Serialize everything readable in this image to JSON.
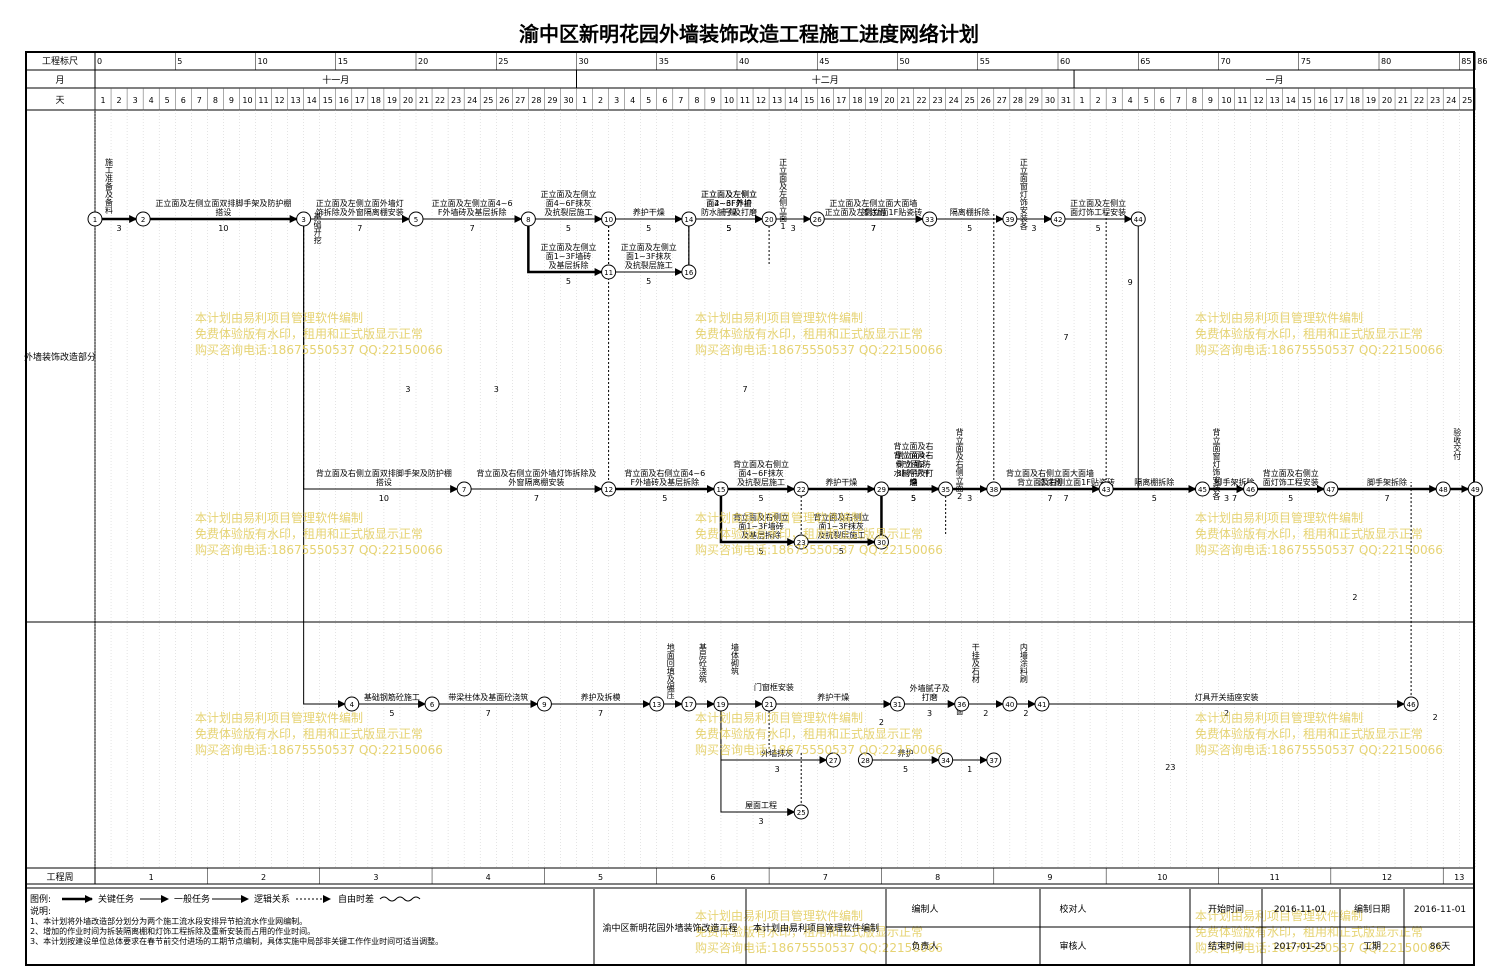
{
  "title": "渝中区新明花园外墙装饰改造工程施工进度网络计划",
  "header": {
    "scale_label": "工程标尺",
    "month_label": "月",
    "day_label": "天",
    "week_label": "工程周",
    "section_label": "外墙装饰改造部分",
    "scale_ticks": [
      "0",
      "5",
      "10",
      "15",
      "20",
      "25",
      "30",
      "35",
      "40",
      "45",
      "50",
      "55",
      "60",
      "65",
      "70",
      "75",
      "80",
      "85",
      "86"
    ],
    "months": [
      {
        "name": "十一月",
        "start": 0,
        "end": 30
      },
      {
        "name": "十二月",
        "start": 30,
        "end": 61
      },
      {
        "name": "一月",
        "start": 61,
        "end": 86
      }
    ],
    "weeks": [
      "1",
      "2",
      "3",
      "4",
      "5",
      "6",
      "7",
      "8",
      "9",
      "10",
      "11",
      "12",
      "13"
    ]
  },
  "nodes": [
    {
      "id": "1",
      "day": 0,
      "row": "A"
    },
    {
      "id": "2",
      "day": 3,
      "row": "A"
    },
    {
      "id": "3",
      "day": 13,
      "row": "A"
    },
    {
      "id": "5",
      "day": 20,
      "row": "A"
    },
    {
      "id": "8",
      "day": 27,
      "row": "A"
    },
    {
      "id": "10",
      "day": 32,
      "row": "A"
    },
    {
      "id": "14",
      "day": 37,
      "row": "A"
    },
    {
      "id": "20",
      "day": 42,
      "row": "A"
    },
    {
      "id": "26",
      "day": 45,
      "row": "A"
    },
    {
      "id": "33",
      "day": 52,
      "row": "A"
    },
    {
      "id": "39",
      "day": 57,
      "row": "A"
    },
    {
      "id": "42",
      "day": 60,
      "row": "A"
    },
    {
      "id": "44",
      "day": 65,
      "row": "A"
    },
    {
      "id": "11",
      "day": 32,
      "row": "B"
    },
    {
      "id": "16",
      "day": 37,
      "row": "B"
    },
    {
      "id": "7",
      "day": 23,
      "row": "C"
    },
    {
      "id": "12",
      "day": 32,
      "row": "C"
    },
    {
      "id": "15",
      "day": 39,
      "row": "C"
    },
    {
      "id": "22",
      "day": 44,
      "row": "C"
    },
    {
      "id": "29",
      "day": 49,
      "row": "C"
    },
    {
      "id": "35",
      "day": 53,
      "row": "C"
    },
    {
      "id": "38",
      "day": 56,
      "row": "C"
    },
    {
      "id": "43",
      "day": 63,
      "row": "C"
    },
    {
      "id": "45",
      "day": 69,
      "row": "C"
    },
    {
      "id": "46",
      "day": 72,
      "row": "C"
    },
    {
      "id": "47",
      "day": 77,
      "row": "C"
    },
    {
      "id": "48",
      "day": 84,
      "row": "C"
    },
    {
      "id": "49",
      "day": 86,
      "row": "C"
    },
    {
      "id": "23",
      "day": 44,
      "row": "D"
    },
    {
      "id": "30",
      "day": 49,
      "row": "D"
    },
    {
      "id": "4",
      "day": 16,
      "row": "E"
    },
    {
      "id": "6",
      "day": 21,
      "row": "E"
    },
    {
      "id": "9",
      "day": 28,
      "row": "E"
    },
    {
      "id": "13",
      "day": 35,
      "row": "E"
    },
    {
      "id": "17",
      "day": 37,
      "row": "E"
    },
    {
      "id": "19",
      "day": 39,
      "row": "E"
    },
    {
      "id": "21",
      "day": 42,
      "row": "E"
    },
    {
      "id": "31",
      "day": 50,
      "row": "E"
    },
    {
      "id": "36",
      "day": 54,
      "row": "E"
    },
    {
      "id": "40",
      "day": 57,
      "row": "E"
    },
    {
      "id": "41",
      "day": 59,
      "row": "E"
    },
    {
      "id": "46b",
      "label": "46",
      "day": 82,
      "row": "E"
    },
    {
      "id": "27",
      "day": 46,
      "row": "F"
    },
    {
      "id": "28",
      "day": 48,
      "row": "F"
    },
    {
      "id": "34",
      "day": 53,
      "row": "F"
    },
    {
      "id": "37",
      "day": 56,
      "row": "F"
    },
    {
      "id": "25",
      "day": 44,
      "row": "G"
    }
  ],
  "arrows": [
    {
      "from": "1",
      "to": "2",
      "label": "施工准备及备料",
      "dur": "3",
      "type": "critical",
      "vertical": true
    },
    {
      "from": "2",
      "to": "3",
      "label": "正立面及左侧立面双排脚手架及防护棚搭设",
      "dur": "10",
      "type": "critical"
    },
    {
      "from": "3",
      "to": "5",
      "label": "正立面及左侧立面外墙灯饰拆除及外窗隔离棚安装",
      "dur": "7",
      "type": "normal"
    },
    {
      "from": "5",
      "to": "8",
      "label": "正立面及左侧立面4~6F外墙砖及基层拆除",
      "dur": "7",
      "type": "normal"
    },
    {
      "from": "8",
      "to": "10",
      "label": "正立面及左侧立面4~6F抹灰及抗裂层施工",
      "dur": "5",
      "type": "normal"
    },
    {
      "from": "10",
      "to": "14",
      "label": "养护干燥",
      "dur": "5",
      "type": "normal"
    },
    {
      "from": "14",
      "to": "20",
      "label": "正立面及左侧立面4~6F外墙防水腻子及打磨",
      "dur": "5",
      "type": "normal"
    },
    {
      "from": "20",
      "to": "26",
      "label": "正立面及左侧立面1~3F外墙腻子及打磨",
      "dur": "3",
      "type": "normal"
    },
    {
      "from": "26",
      "to": "33",
      "label": "正立面及左侧立面大面墙漆涂刷",
      "dur": "7",
      "type": "normal"
    },
    {
      "from": "33",
      "to": "39",
      "label": "隔离棚拆除",
      "dur": "5",
      "type": "normal"
    },
    {
      "from": "39",
      "to": "42",
      "label": "正立面窗灯饰安装各分相测试",
      "dur": "3",
      "type": "normal"
    },
    {
      "from": "42",
      "to": "44",
      "label": "正立面及左侧立面灯饰工程安装",
      "dur": "5",
      "type": "normal"
    },
    {
      "from": "44",
      "to": "47",
      "label": "脚手架拆除",
      "dur": "7",
      "type": "normal"
    },
    {
      "from": "8",
      "to": "11",
      "label": "正立面及左侧立面1~3F墙砖及基层拆除",
      "dur": "5",
      "type": "critical"
    },
    {
      "from": "11",
      "to": "16",
      "label": "正立面及左侧立面1~3F抹灰及抗裂层施工",
      "dur": "5",
      "type": "normal"
    },
    {
      "from": "16",
      "to": "20",
      "label": "正立面及左侧立面2~3F养护干燥",
      "dur": "5",
      "type": "normal"
    },
    {
      "from": "16",
      "to": "42",
      "label": "正立面及左侧立面1F贴瓷砖",
      "dur": "7",
      "type": "normal"
    },
    {
      "from": "3",
      "to": "7",
      "label": "背立面及右侧立面双排脚手架及防护棚搭设",
      "dur": "10",
      "type": "normal"
    },
    {
      "from": "7",
      "to": "12",
      "label": "背立面及右侧立面外墙灯饰拆除及外窗隔离棚安装",
      "dur": "7",
      "type": "normal"
    },
    {
      "from": "12",
      "to": "15",
      "label": "背立面及右侧立面4~6F外墙砖及基层拆除",
      "dur": "5",
      "type": "critical"
    },
    {
      "from": "15",
      "to": "22",
      "label": "背立面及右侧立面4~6F抹灰及抗裂层施工",
      "dur": "5",
      "type": "critical"
    },
    {
      "from": "22",
      "to": "29",
      "label": "养护干燥",
      "dur": "5",
      "type": "critical"
    },
    {
      "from": "29",
      "to": "35",
      "label": "背立面及右侧立面4~6F外墙防水腻子及打磨",
      "dur": "5",
      "type": "critical"
    },
    {
      "from": "35",
      "to": "38",
      "label": "背立面及右侧立面2~3F外墙腻子及打磨",
      "dur": "3",
      "type": "critical"
    },
    {
      "from": "38",
      "to": "43",
      "label": "背立面及右侧立面大面墙漆涂刷",
      "dur": "7",
      "type": "critical"
    },
    {
      "from": "43",
      "to": "45",
      "label": "隔离棚拆除",
      "dur": "5",
      "type": "critical"
    },
    {
      "from": "45",
      "to": "46",
      "label": "背立面窗灯饰安装各分相测试",
      "dur": "3",
      "type": "critical"
    },
    {
      "from": "46",
      "to": "47",
      "label": "背立面及右侧立面灯饰工程安装",
      "dur": "5",
      "type": "critical"
    },
    {
      "from": "47",
      "to": "48",
      "label": "脚手架拆除",
      "dur": "7",
      "type": "critical"
    },
    {
      "from": "48",
      "to": "49",
      "label": "验收交付",
      "dur": "",
      "type": "critical",
      "vertical": true
    },
    {
      "from": "15",
      "to": "23",
      "label": "背立面及右侧立面1~3F墙砖及基层拆除",
      "dur": "5",
      "type": "critical"
    },
    {
      "from": "23",
      "to": "30",
      "label": "背立面及右侧立面1~3F抹灰及抗裂层施工",
      "dur": "5",
      "type": "critical"
    },
    {
      "from": "30",
      "to": "35",
      "label": "背立面及右侧立面2~3F养护干燥",
      "dur": "5",
      "type": "critical"
    },
    {
      "from": "30",
      "to": "46",
      "label": "背立面及右侧立面1F贴瓷砖",
      "dur": "7",
      "type": "normal"
    },
    {
      "from": "3",
      "to": "4",
      "label": "基础开挖",
      "dur": "",
      "type": "normal",
      "vertical": true
    },
    {
      "from": "4",
      "to": "6",
      "label": "基础钢筋砼施工",
      "dur": "5",
      "type": "normal"
    },
    {
      "from": "6",
      "to": "9",
      "label": "带梁柱体及基面砼浇筑",
      "dur": "7",
      "type": "normal"
    },
    {
      "from": "9",
      "to": "13",
      "label": "养护及拆模",
      "dur": "7",
      "type": "normal"
    },
    {
      "from": "13",
      "to": "17",
      "label": "地面回填及碾压",
      "dur": "",
      "type": "normal",
      "vertical": true
    },
    {
      "from": "17",
      "to": "19",
      "label": "基层砼浇筑",
      "dur": "",
      "type": "normal",
      "vertical": true
    },
    {
      "from": "19",
      "to": "21",
      "label": "墙体砌筑",
      "dur": "",
      "type": "normal",
      "vertical": true
    },
    {
      "from": "21",
      "to": "31",
      "label": "养护干燥",
      "dur": "",
      "type": "normal"
    },
    {
      "from": "31",
      "to": "36",
      "label": "外墙腻子及打磨",
      "dur": "3",
      "type": "normal"
    },
    {
      "from": "36",
      "to": "40",
      "label": "干挂及石材",
      "dur": "2",
      "type": "normal"
    },
    {
      "from": "40",
      "to": "41",
      "label": "内墙涂料刷",
      "dur": "2",
      "type": "normal"
    },
    {
      "from": "41",
      "to": "46b",
      "label": "灯具开关插座安装",
      "dur": "2",
      "type": "normal"
    },
    {
      "from": "19",
      "to": "27",
      "label": "外墙抹灰",
      "dur": "3",
      "type": "normal"
    },
    {
      "from": "28",
      "to": "34",
      "label": "养护",
      "dur": "5",
      "type": "normal"
    },
    {
      "from": "34",
      "to": "37",
      "label": "门窗",
      "dur": "1",
      "type": "normal"
    },
    {
      "from": "19",
      "to": "25",
      "label": "屋面工程",
      "dur": "3",
      "type": "normal"
    }
  ],
  "top_note": "门窗框安装",
  "free_floats": [
    "3",
    "9",
    "7",
    "7",
    "3",
    "23",
    "2",
    "2",
    "2"
  ],
  "legend": {
    "label": "图例:",
    "critical": "关键任务",
    "normal": "一般任务",
    "logic": "逻辑关系",
    "float": "自由时差",
    "notes_title": "说明:",
    "notes": [
      "1、本计划将外墙改造部分划分为两个施工流水段安排异节拍流水作业网编制。",
      "2、增加的作业时间为拆装隔离棚和灯饰工程拆除及重新安装而占用的作业时间。",
      "3、本计划按建设单位总体要求在春节前交付进场的工期节点编制，具体实施中局部非关键工作作业时间可适当调整。"
    ]
  },
  "footer": {
    "project_name": "渝中区新明花园外墙装饰改造工程",
    "software": "本计划由易利项目管理软件编制",
    "compiler_label": "编制人",
    "proofreader_label": "校对人",
    "leader_label": "负责人",
    "reviewer_label": "审核人",
    "start_label": "开始时间",
    "start_value": "2016-11-01",
    "compile_date_label": "编制日期",
    "compile_date_value": "2016-11-01",
    "end_label": "结束时间",
    "end_value": "2017-01-25",
    "duration_label": "工期",
    "duration_value": "86天"
  },
  "watermark": {
    "line1": "本计划由易利项目管理软件编制",
    "line2": "免费体验版有水印，租用和正式版显示正常",
    "line3": "购买咨询电话:18675550537 QQ:22150066"
  },
  "colors": {
    "critical": "#000000",
    "grid": "#999999",
    "watermark": "#e0c850"
  }
}
